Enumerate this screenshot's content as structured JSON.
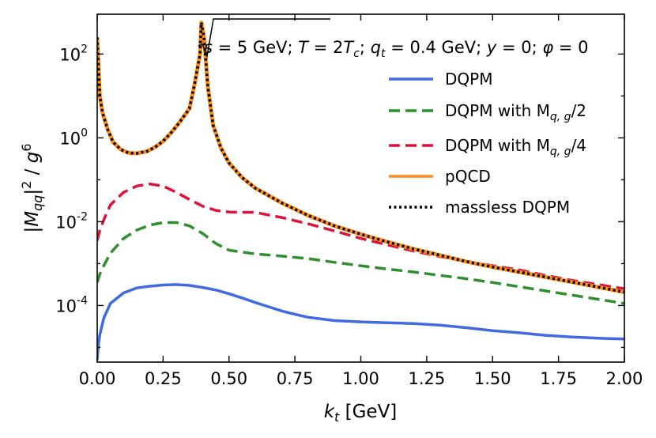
{
  "chart_data": {
    "type": "line",
    "annotation": "√s = 5 GeV; T = 2Tc; qt = 0.4 GeV; y = 0; φ = 0",
    "xlabel": "k_t [GeV]",
    "ylabel": "|M_qq|^2 / g^6",
    "xlim": [
      0,
      2.0
    ],
    "ylim_log10": [
      -5.35,
      2.95
    ],
    "yscale": "log",
    "x_ticks": [
      0.0,
      0.25,
      0.5,
      0.75,
      1.0,
      1.25,
      1.5,
      1.75,
      2.0
    ],
    "x_tick_labels": [
      "0.00",
      "0.25",
      "0.50",
      "0.75",
      "1.00",
      "1.25",
      "1.50",
      "1.75",
      "2.00"
    ],
    "y_ticks_log10": [
      -4,
      -2,
      0,
      2
    ],
    "y_tick_labels": [
      {
        "base": "10",
        "exp": "-4"
      },
      {
        "base": "10",
        "exp": "-2"
      },
      {
        "base": "10",
        "exp": "0"
      },
      {
        "base": "10",
        "exp": "2"
      }
    ],
    "series": [
      {
        "name": "DQPM",
        "legend_label": "DQPM",
        "color": "#4169e1",
        "style": "solid",
        "points_log10": [
          [
            0.0,
            -5.3
          ],
          [
            0.005,
            -4.9
          ],
          [
            0.01,
            -4.7
          ],
          [
            0.025,
            -4.3
          ],
          [
            0.05,
            -3.95
          ],
          [
            0.1,
            -3.7
          ],
          [
            0.15,
            -3.58
          ],
          [
            0.2,
            -3.54
          ],
          [
            0.25,
            -3.51
          ],
          [
            0.3,
            -3.5
          ],
          [
            0.35,
            -3.52
          ],
          [
            0.4,
            -3.57
          ],
          [
            0.45,
            -3.63
          ],
          [
            0.5,
            -3.72
          ],
          [
            0.55,
            -3.82
          ],
          [
            0.6,
            -3.93
          ],
          [
            0.65,
            -4.03
          ],
          [
            0.7,
            -4.13
          ],
          [
            0.75,
            -4.21
          ],
          [
            0.8,
            -4.28
          ],
          [
            0.9,
            -4.36
          ],
          [
            1.0,
            -4.39
          ],
          [
            1.1,
            -4.41
          ],
          [
            1.2,
            -4.43
          ],
          [
            1.3,
            -4.47
          ],
          [
            1.4,
            -4.53
          ],
          [
            1.5,
            -4.6
          ],
          [
            1.6,
            -4.65
          ],
          [
            1.7,
            -4.71
          ],
          [
            1.8,
            -4.75
          ],
          [
            1.9,
            -4.78
          ],
          [
            2.0,
            -4.8
          ]
        ]
      },
      {
        "name": "DQPM with Mqg/2",
        "legend_label": "DQPM with M",
        "legend_sub": "q, g",
        "legend_suffix": "/2",
        "color": "#2f8f2f",
        "style": "dashed",
        "points_log10": [
          [
            0.0,
            -3.45
          ],
          [
            0.01,
            -3.25
          ],
          [
            0.025,
            -3.05
          ],
          [
            0.05,
            -2.75
          ],
          [
            0.1,
            -2.4
          ],
          [
            0.15,
            -2.2
          ],
          [
            0.2,
            -2.08
          ],
          [
            0.25,
            -2.02
          ],
          [
            0.3,
            -2.02
          ],
          [
            0.35,
            -2.1
          ],
          [
            0.4,
            -2.28
          ],
          [
            0.45,
            -2.52
          ],
          [
            0.5,
            -2.68
          ],
          [
            0.6,
            -2.77
          ],
          [
            0.7,
            -2.82
          ],
          [
            0.8,
            -2.88
          ],
          [
            0.9,
            -2.97
          ],
          [
            1.0,
            -3.05
          ],
          [
            1.1,
            -3.13
          ],
          [
            1.2,
            -3.2
          ],
          [
            1.3,
            -3.28
          ],
          [
            1.4,
            -3.36
          ],
          [
            1.5,
            -3.45
          ],
          [
            1.6,
            -3.55
          ],
          [
            1.7,
            -3.65
          ],
          [
            1.8,
            -3.75
          ],
          [
            1.9,
            -3.85
          ],
          [
            2.0,
            -3.95
          ]
        ]
      },
      {
        "name": "DQPM with Mqg/4",
        "legend_label": "DQPM with M",
        "legend_sub": "q, g",
        "legend_suffix": "/4",
        "color": "#dc143c",
        "style": "dashed",
        "points_log10": [
          [
            0.0,
            -2.45
          ],
          [
            0.01,
            -2.2
          ],
          [
            0.03,
            -1.88
          ],
          [
            0.05,
            -1.6
          ],
          [
            0.1,
            -1.3
          ],
          [
            0.15,
            -1.15
          ],
          [
            0.2,
            -1.1
          ],
          [
            0.25,
            -1.15
          ],
          [
            0.3,
            -1.3
          ],
          [
            0.35,
            -1.47
          ],
          [
            0.4,
            -1.63
          ],
          [
            0.45,
            -1.73
          ],
          [
            0.5,
            -1.77
          ],
          [
            0.6,
            -1.78
          ],
          [
            0.7,
            -1.9
          ],
          [
            0.8,
            -2.05
          ],
          [
            0.9,
            -2.22
          ],
          [
            1.0,
            -2.4
          ],
          [
            1.1,
            -2.55
          ],
          [
            1.2,
            -2.7
          ],
          [
            1.3,
            -2.83
          ],
          [
            1.4,
            -2.95
          ],
          [
            1.5,
            -3.05
          ],
          [
            1.6,
            -3.15
          ],
          [
            1.7,
            -3.28
          ],
          [
            1.8,
            -3.4
          ],
          [
            1.9,
            -3.5
          ],
          [
            2.0,
            -3.6
          ]
        ]
      },
      {
        "name": "pQCD",
        "legend_label": "pQCD",
        "color": "#ff8c1a",
        "style": "solid",
        "points_log10": [
          [
            0.0,
            2.4
          ],
          [
            0.01,
            1.0
          ],
          [
            0.02,
            0.6
          ],
          [
            0.04,
            0.2
          ],
          [
            0.06,
            -0.1
          ],
          [
            0.09,
            -0.28
          ],
          [
            0.12,
            -0.36
          ],
          [
            0.15,
            -0.37
          ],
          [
            0.19,
            -0.32
          ],
          [
            0.22,
            -0.22
          ],
          [
            0.25,
            -0.08
          ],
          [
            0.28,
            0.12
          ],
          [
            0.31,
            0.35
          ],
          [
            0.35,
            0.7
          ],
          [
            0.37,
            1.3
          ],
          [
            0.39,
            2.0
          ],
          [
            0.395,
            2.75
          ],
          [
            0.405,
            2.4
          ],
          [
            0.42,
            1.2
          ],
          [
            0.44,
            0.3
          ],
          [
            0.47,
            -0.25
          ],
          [
            0.5,
            -0.6
          ],
          [
            0.55,
            -0.95
          ],
          [
            0.6,
            -1.2
          ],
          [
            0.7,
            -1.55
          ],
          [
            0.8,
            -1.85
          ],
          [
            0.9,
            -2.1
          ],
          [
            1.0,
            -2.3
          ],
          [
            1.1,
            -2.48
          ],
          [
            1.2,
            -2.65
          ],
          [
            1.3,
            -2.8
          ],
          [
            1.4,
            -2.95
          ],
          [
            1.5,
            -3.08
          ],
          [
            1.6,
            -3.2
          ],
          [
            1.7,
            -3.32
          ],
          [
            1.8,
            -3.44
          ],
          [
            1.9,
            -3.56
          ],
          [
            2.0,
            -3.68
          ]
        ]
      },
      {
        "name": "massless DQPM",
        "legend_label": "massless DQPM",
        "color": "#000000",
        "style": "dotted",
        "points_log10": [
          [
            0.0,
            2.4
          ],
          [
            0.01,
            1.0
          ],
          [
            0.02,
            0.6
          ],
          [
            0.04,
            0.2
          ],
          [
            0.06,
            -0.1
          ],
          [
            0.09,
            -0.28
          ],
          [
            0.12,
            -0.36
          ],
          [
            0.15,
            -0.37
          ],
          [
            0.19,
            -0.32
          ],
          [
            0.22,
            -0.22
          ],
          [
            0.25,
            -0.08
          ],
          [
            0.28,
            0.12
          ],
          [
            0.31,
            0.35
          ],
          [
            0.35,
            0.7
          ],
          [
            0.37,
            1.3
          ],
          [
            0.39,
            2.0
          ],
          [
            0.395,
            2.75
          ],
          [
            0.405,
            2.4
          ],
          [
            0.42,
            1.2
          ],
          [
            0.44,
            0.3
          ],
          [
            0.47,
            -0.25
          ],
          [
            0.5,
            -0.6
          ],
          [
            0.55,
            -0.95
          ],
          [
            0.6,
            -1.2
          ],
          [
            0.7,
            -1.55
          ],
          [
            0.8,
            -1.85
          ],
          [
            0.9,
            -2.1
          ],
          [
            1.0,
            -2.3
          ],
          [
            1.1,
            -2.48
          ],
          [
            1.2,
            -2.65
          ],
          [
            1.3,
            -2.8
          ],
          [
            1.4,
            -2.95
          ],
          [
            1.5,
            -3.08
          ],
          [
            1.6,
            -3.2
          ],
          [
            1.7,
            -3.32
          ],
          [
            1.8,
            -3.44
          ],
          [
            1.9,
            -3.56
          ],
          [
            2.0,
            -3.68
          ]
        ]
      }
    ],
    "legend_position": "upper-right"
  }
}
